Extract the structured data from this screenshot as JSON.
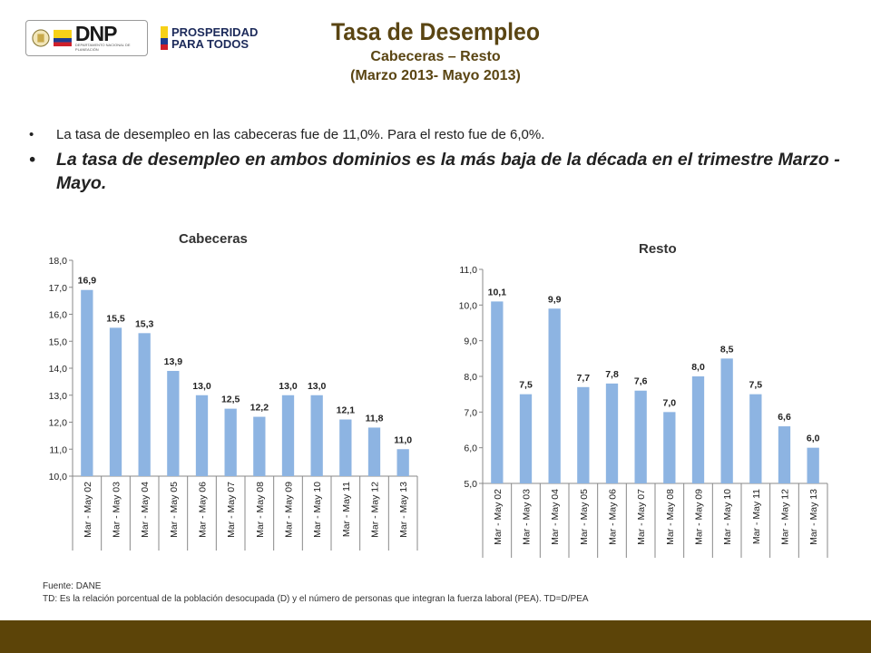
{
  "header": {
    "logo1_name": "DNP",
    "logo1_sub": "DEPARTAMENTO NACIONAL DE PLANEACIÓN",
    "logo2_line1": "PROSPERIDAD",
    "logo2_line2": "PARA TODOS",
    "title": "Tasa de Desempleo",
    "subtitle1": "Cabeceras – Resto",
    "subtitle2": "(Marzo 2013- Mayo 2013)"
  },
  "bullets": {
    "b1": "La tasa de desempleo en las cabeceras fue de 11,0%. Para el resto fue de 6,0%.",
    "b2": "La tasa de desempleo en ambos dominios es la más baja de la década en el trimestre Marzo - Mayo."
  },
  "chart_data": [
    {
      "type": "bar",
      "title": "Cabeceras",
      "categories": [
        "Mar - May 02",
        "Mar - May 03",
        "Mar - May 04",
        "Mar - May 05",
        "Mar - May 06",
        "Mar - May 07",
        "Mar - May 08",
        "Mar - May 09",
        "Mar - May 10",
        "Mar - May 11",
        "Mar - May 12",
        "Mar - May 13"
      ],
      "values": [
        16.9,
        15.5,
        15.3,
        13.9,
        13.0,
        12.5,
        12.2,
        13.0,
        13.0,
        12.1,
        11.8,
        11.0
      ],
      "labels": [
        "16,9",
        "15,5",
        "15,3",
        "13,9",
        "13,0",
        "12,5",
        "12,2",
        "13,0",
        "13,0",
        "12,1",
        "11,8",
        "11,0"
      ],
      "yticks": [
        "10,0",
        "11,0",
        "12,0",
        "13,0",
        "14,0",
        "15,0",
        "16,0",
        "17,0",
        "18,0"
      ],
      "ylim": [
        10,
        18
      ],
      "color": "#8db4e2"
    },
    {
      "type": "bar",
      "title": "Resto",
      "categories": [
        "Mar - May 02",
        "Mar - May 03",
        "Mar - May 04",
        "Mar - May 05",
        "Mar - May 06",
        "Mar - May 07",
        "Mar - May 08",
        "Mar - May 09",
        "Mar - May 10",
        "Mar - May 11",
        "Mar - May 12",
        "Mar - May 13"
      ],
      "values": [
        10.1,
        7.5,
        9.9,
        7.7,
        7.8,
        7.6,
        7.0,
        8.0,
        8.5,
        7.5,
        6.6,
        6.0
      ],
      "labels": [
        "10,1",
        "7,5",
        "9,9",
        "7,7",
        "7,8",
        "7,6",
        "7,0",
        "8,0",
        "8,5",
        "7,5",
        "6,6",
        "6,0"
      ],
      "yticks": [
        "5,0",
        "6,0",
        "7,0",
        "8,0",
        "9,0",
        "10,0",
        "11,0"
      ],
      "ylim": [
        5,
        11
      ],
      "color": "#8db4e2"
    }
  ],
  "footer": {
    "source": "Fuente: DANE",
    "note": "TD:  Es la relación porcentual de la población desocupada (D) y el número de personas que integran la fuerza laboral (PEA). TD=D/PEA"
  },
  "colors": {
    "title": "#5a4513",
    "bottom_bar": "#5c4408",
    "bar": "#8db4e2"
  }
}
